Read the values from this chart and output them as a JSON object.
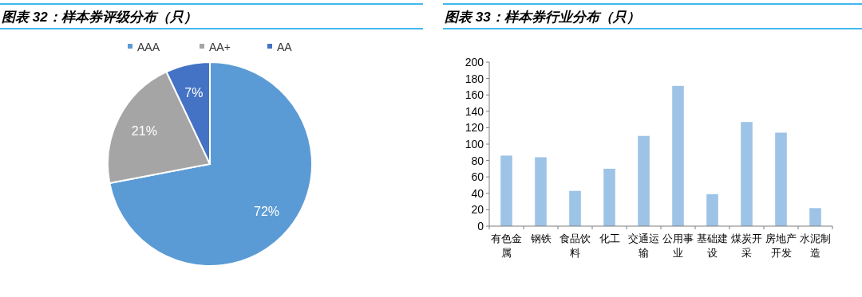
{
  "chart_data": [
    {
      "type": "pie",
      "title": "图表 32：样本券评级分布（只）",
      "categories": [
        "AAA",
        "AA+",
        "AA"
      ],
      "values": [
        72,
        21,
        7
      ],
      "colors": [
        "#5b9bd5",
        "#a5a5a5",
        "#4472c4"
      ],
      "value_labels": [
        "72%",
        "21%",
        "7%"
      ],
      "legend": "top"
    },
    {
      "type": "bar",
      "title": "图表 33：样本券行业分布（只）",
      "categories": [
        "有色金属",
        "钢铁",
        "食品饮料",
        "化工",
        "交通运输",
        "公用事业",
        "基础建设",
        "煤炭开采",
        "房地产开发",
        "水泥制造"
      ],
      "values": [
        86,
        84,
        43,
        70,
        110,
        171,
        39,
        127,
        114,
        22
      ],
      "color": "#9dc3e6",
      "ylim": [
        0,
        200
      ],
      "yticks": [
        0,
        20,
        40,
        60,
        80,
        100,
        120,
        140,
        160,
        180,
        200
      ],
      "grid": false
    }
  ]
}
